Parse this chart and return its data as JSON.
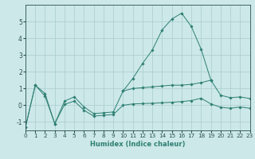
{
  "xlabel": "Humidex (Indice chaleur)",
  "x_all": [
    0,
    1,
    2,
    3,
    4,
    5,
    6,
    7,
    8,
    9,
    10,
    11,
    12,
    13,
    14,
    15,
    16,
    17,
    18,
    19,
    20,
    21,
    22,
    23
  ],
  "line_upper": [
    -1.3,
    1.2,
    0.7,
    -1.1,
    0.25,
    0.5,
    -0.1,
    -0.5,
    -0.45,
    -0.4,
    0.85,
    1.0,
    1.05,
    1.1,
    1.15,
    1.2,
    1.2,
    1.25,
    1.35,
    1.5,
    0.6,
    0.45,
    0.5,
    0.4
  ],
  "line_lower": [
    -1.3,
    1.2,
    0.55,
    -1.1,
    0.05,
    0.25,
    -0.3,
    -0.65,
    -0.6,
    -0.55,
    0.0,
    0.08,
    0.1,
    0.12,
    0.15,
    0.18,
    0.22,
    0.28,
    0.42,
    0.08,
    -0.12,
    -0.18,
    -0.1,
    -0.18
  ],
  "x_bell": [
    10,
    11,
    12,
    13,
    14,
    15,
    16,
    17,
    18,
    19
  ],
  "y_bell": [
    0.85,
    1.6,
    2.5,
    3.3,
    4.5,
    5.15,
    5.5,
    4.7,
    3.35,
    1.5
  ],
  "color": "#2e7f72",
  "bg_color": "#cce8e8",
  "grid_color": "#aacccc",
  "ylim": [
    -1.5,
    6.0
  ],
  "xlim": [
    0,
    23
  ],
  "yticks": [
    -1,
    0,
    1,
    2,
    3,
    4,
    5
  ],
  "xticks": [
    0,
    1,
    2,
    3,
    4,
    5,
    6,
    7,
    8,
    9,
    10,
    11,
    12,
    13,
    14,
    15,
    16,
    17,
    18,
    19,
    20,
    21,
    22,
    23
  ],
  "tick_labelsize": 5.2,
  "xlabel_fontsize": 6.0
}
